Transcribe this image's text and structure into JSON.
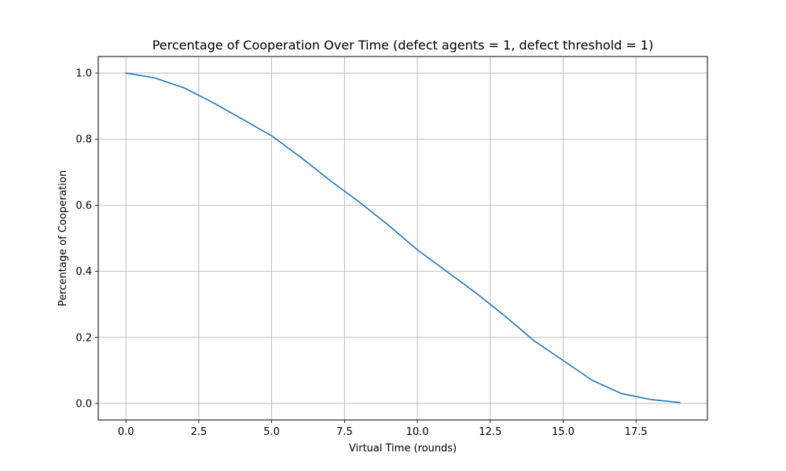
{
  "chart_data": {
    "type": "line",
    "title": "Percentage of Cooperation Over Time (defect agents = 1, defect threshold = 1)",
    "xlabel": "Virtual Time (rounds)",
    "ylabel": "Percentage of Cooperation",
    "xlim": [
      -0.95,
      19.95
    ],
    "ylim": [
      -0.05,
      1.05
    ],
    "xticks": [
      0.0,
      2.5,
      5.0,
      7.5,
      10.0,
      12.5,
      15.0,
      17.5
    ],
    "xtick_labels": [
      "0.0",
      "2.5",
      "5.0",
      "7.5",
      "10.0",
      "12.5",
      "15.0",
      "17.5"
    ],
    "yticks": [
      0.0,
      0.2,
      0.4,
      0.6,
      0.8,
      1.0
    ],
    "ytick_labels": [
      "0.0",
      "0.2",
      "0.4",
      "0.6",
      "0.8",
      "1.0"
    ],
    "grid": true,
    "legend": "none",
    "series": [
      {
        "color": "#1f77b4",
        "x": [
          0,
          1,
          2,
          3,
          4,
          5,
          6,
          7,
          8,
          9,
          10,
          11,
          12,
          13,
          14,
          15,
          16,
          17,
          18,
          19
        ],
        "y": [
          1.0,
          0.985,
          0.955,
          0.91,
          0.86,
          0.81,
          0.745,
          0.675,
          0.61,
          0.54,
          0.465,
          0.4,
          0.335,
          0.265,
          0.19,
          0.13,
          0.07,
          0.03,
          0.012,
          0.003
        ]
      }
    ]
  }
}
